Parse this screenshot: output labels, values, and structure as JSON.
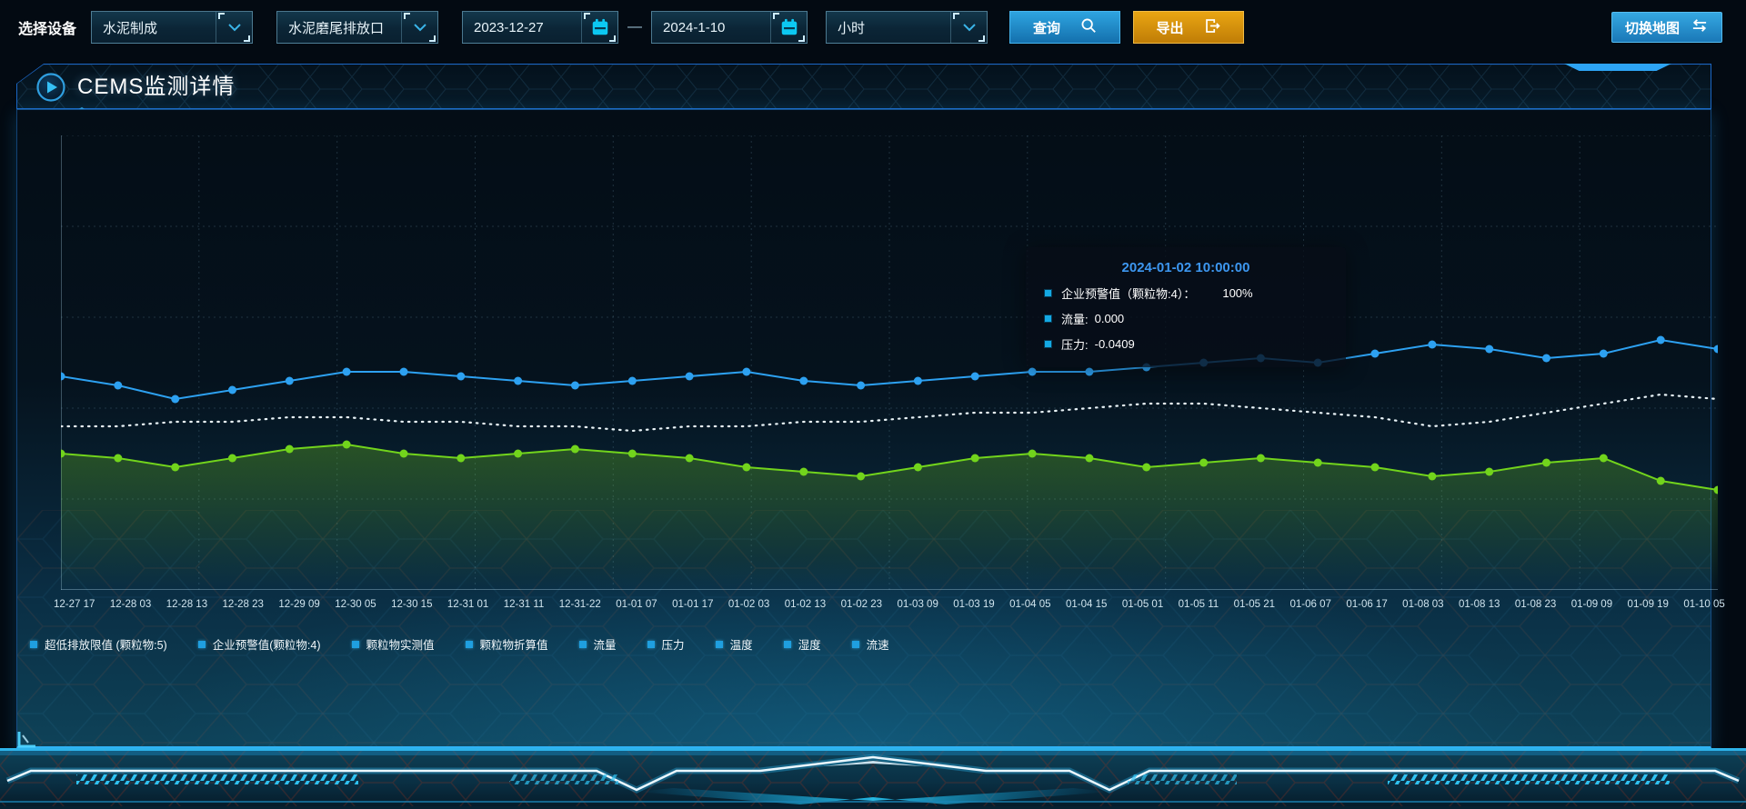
{
  "toolbar": {
    "device_label": "选择设备",
    "device_value": "水泥制成",
    "outlet_value": "水泥磨尾排放口",
    "date_start": "2023-12-27",
    "date_separator": "—",
    "date_end": "2024-1-10",
    "interval_value": "小时",
    "query_label": "查询",
    "export_label": "导出",
    "switch_map_label": "切换地图"
  },
  "panel": {
    "title": "CEMS监测详情"
  },
  "tooltip": {
    "title": "2024-01-02 10:00:00",
    "rows": [
      {
        "label": "企业预警值（颗粒物:4）：",
        "value": "100%"
      },
      {
        "label": "流量:",
        "value": "0.000"
      },
      {
        "label": "压力:",
        "value": "-0.0409"
      }
    ]
  },
  "chart_data": {
    "type": "line",
    "title": "CEMS监测详情",
    "xlabel": "",
    "ylabel": "",
    "ylim": [
      0,
      100
    ],
    "grid": "dashed",
    "legend_position": "bottom",
    "note": "no y-axis tick labels shown; series values are relative (% of plot height)",
    "x": [
      "12-27 17",
      "12-28 03",
      "12-28 13",
      "12-28 23",
      "12-29 09",
      "12-30 05",
      "12-30 15",
      "12-31 01",
      "12-31 11",
      "12-31-22",
      "01-01 07",
      "01-01 17",
      "01-02 03",
      "01-02 13",
      "01-02 23",
      "01-03 09",
      "01-03 19",
      "01-04 05",
      "01-04 15",
      "01-05 01",
      "01-05 11",
      "01-05 21",
      "01-06 07",
      "01-06 17",
      "01-08 03",
      "01-08 13",
      "01-08 23",
      "01-09 09",
      "01-09 19",
      "01-10 05"
    ],
    "legend": [
      "超低排放限值 (颗粒物:5)",
      "企业预警值(颗粒物:4)",
      "颗粒物实测值",
      "颗粒物折算值",
      "流量",
      "压力",
      "温度",
      "湿度",
      "流速"
    ],
    "series": [
      {
        "name": "企业预警值(颗粒物:4)",
        "color": "#2da1f1",
        "style": "solid",
        "markers": true,
        "area": false,
        "values": [
          47,
          45,
          42,
          44,
          46,
          48,
          48,
          47,
          46,
          45,
          46,
          47,
          48,
          46,
          45,
          46,
          47,
          48,
          48,
          49,
          50,
          51,
          50,
          52,
          54,
          53,
          51,
          52,
          55,
          53
        ]
      },
      {
        "name": "流量",
        "color": "#e9f3f7",
        "style": "dotted",
        "markers": false,
        "area": false,
        "values": [
          36,
          36,
          37,
          37,
          38,
          38,
          37,
          37,
          36,
          36,
          35,
          36,
          36,
          37,
          37,
          38,
          39,
          39,
          40,
          41,
          41,
          40,
          39,
          38,
          36,
          37,
          39,
          41,
          43,
          42
        ]
      },
      {
        "name": "压力",
        "color": "#72d41c",
        "style": "solid",
        "markers": true,
        "area": true,
        "values": [
          30,
          29,
          27,
          29,
          31,
          32,
          30,
          29,
          30,
          31,
          30,
          29,
          27,
          26,
          25,
          27,
          29,
          30,
          29,
          27,
          28,
          29,
          28,
          27,
          25,
          26,
          28,
          29,
          24,
          22
        ]
      }
    ]
  },
  "colors": {
    "page_bg": "#030a12",
    "panel_border": "#1b66c4",
    "panel_bottom_glow": "#2fb2f4",
    "accent_cyan": "#0cc8f2",
    "query_button": "#1f86c8",
    "export_button": "#d9960e",
    "tooltip_title": "#3d97f0",
    "legend_marker": "#1f9fe0",
    "line_blue": "#2da1f1",
    "line_white": "#e9f3f7",
    "line_green": "#72d41c"
  }
}
